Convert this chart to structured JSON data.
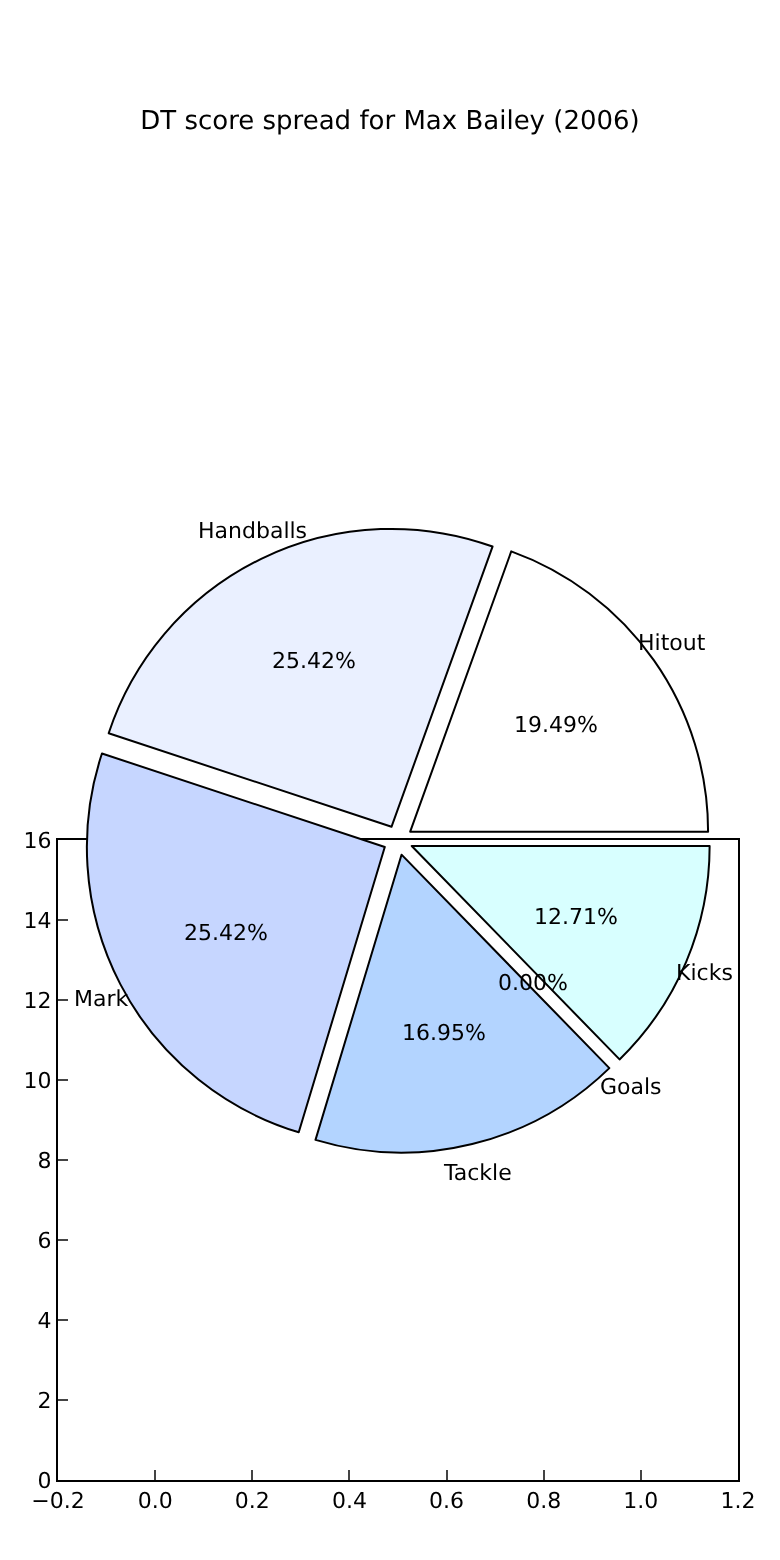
{
  "chart_data": [
    {
      "type": "pie",
      "title": "DT score spread for Max Bailey (2006)",
      "categories": [
        "Hitout",
        "Handballs",
        "Mark",
        "Tackle",
        "Goals",
        "Kicks"
      ],
      "values": [
        19.49,
        25.42,
        25.42,
        16.95,
        0.0,
        12.71
      ],
      "value_labels": [
        "19.49%",
        "25.42%",
        "25.42%",
        "16.95%",
        "0.00%",
        "12.71%"
      ],
      "colors": [
        "#ffffff",
        "#eaf0ff",
        "#c6d6ff",
        "#b3d4ff",
        "#c0e0ff",
        "#d8ffff"
      ]
    },
    {
      "type": "scatter",
      "xlim": [
        -0.2,
        1.2
      ],
      "xticks": [
        {
          "value": -0.2,
          "label": "−0.2"
        },
        {
          "value": 0.0,
          "label": "0.0"
        },
        {
          "value": 0.2,
          "label": "0.2"
        },
        {
          "value": 0.4,
          "label": "0.4"
        },
        {
          "value": 0.6,
          "label": "0.6"
        },
        {
          "value": 0.8,
          "label": "0.8"
        },
        {
          "value": 1.0,
          "label": "1.0"
        },
        {
          "value": 1.2,
          "label": "1.2"
        }
      ],
      "ylim": [
        0,
        16
      ],
      "yticks": [
        0,
        2,
        4,
        6,
        8,
        10,
        12,
        14,
        16
      ]
    }
  ]
}
